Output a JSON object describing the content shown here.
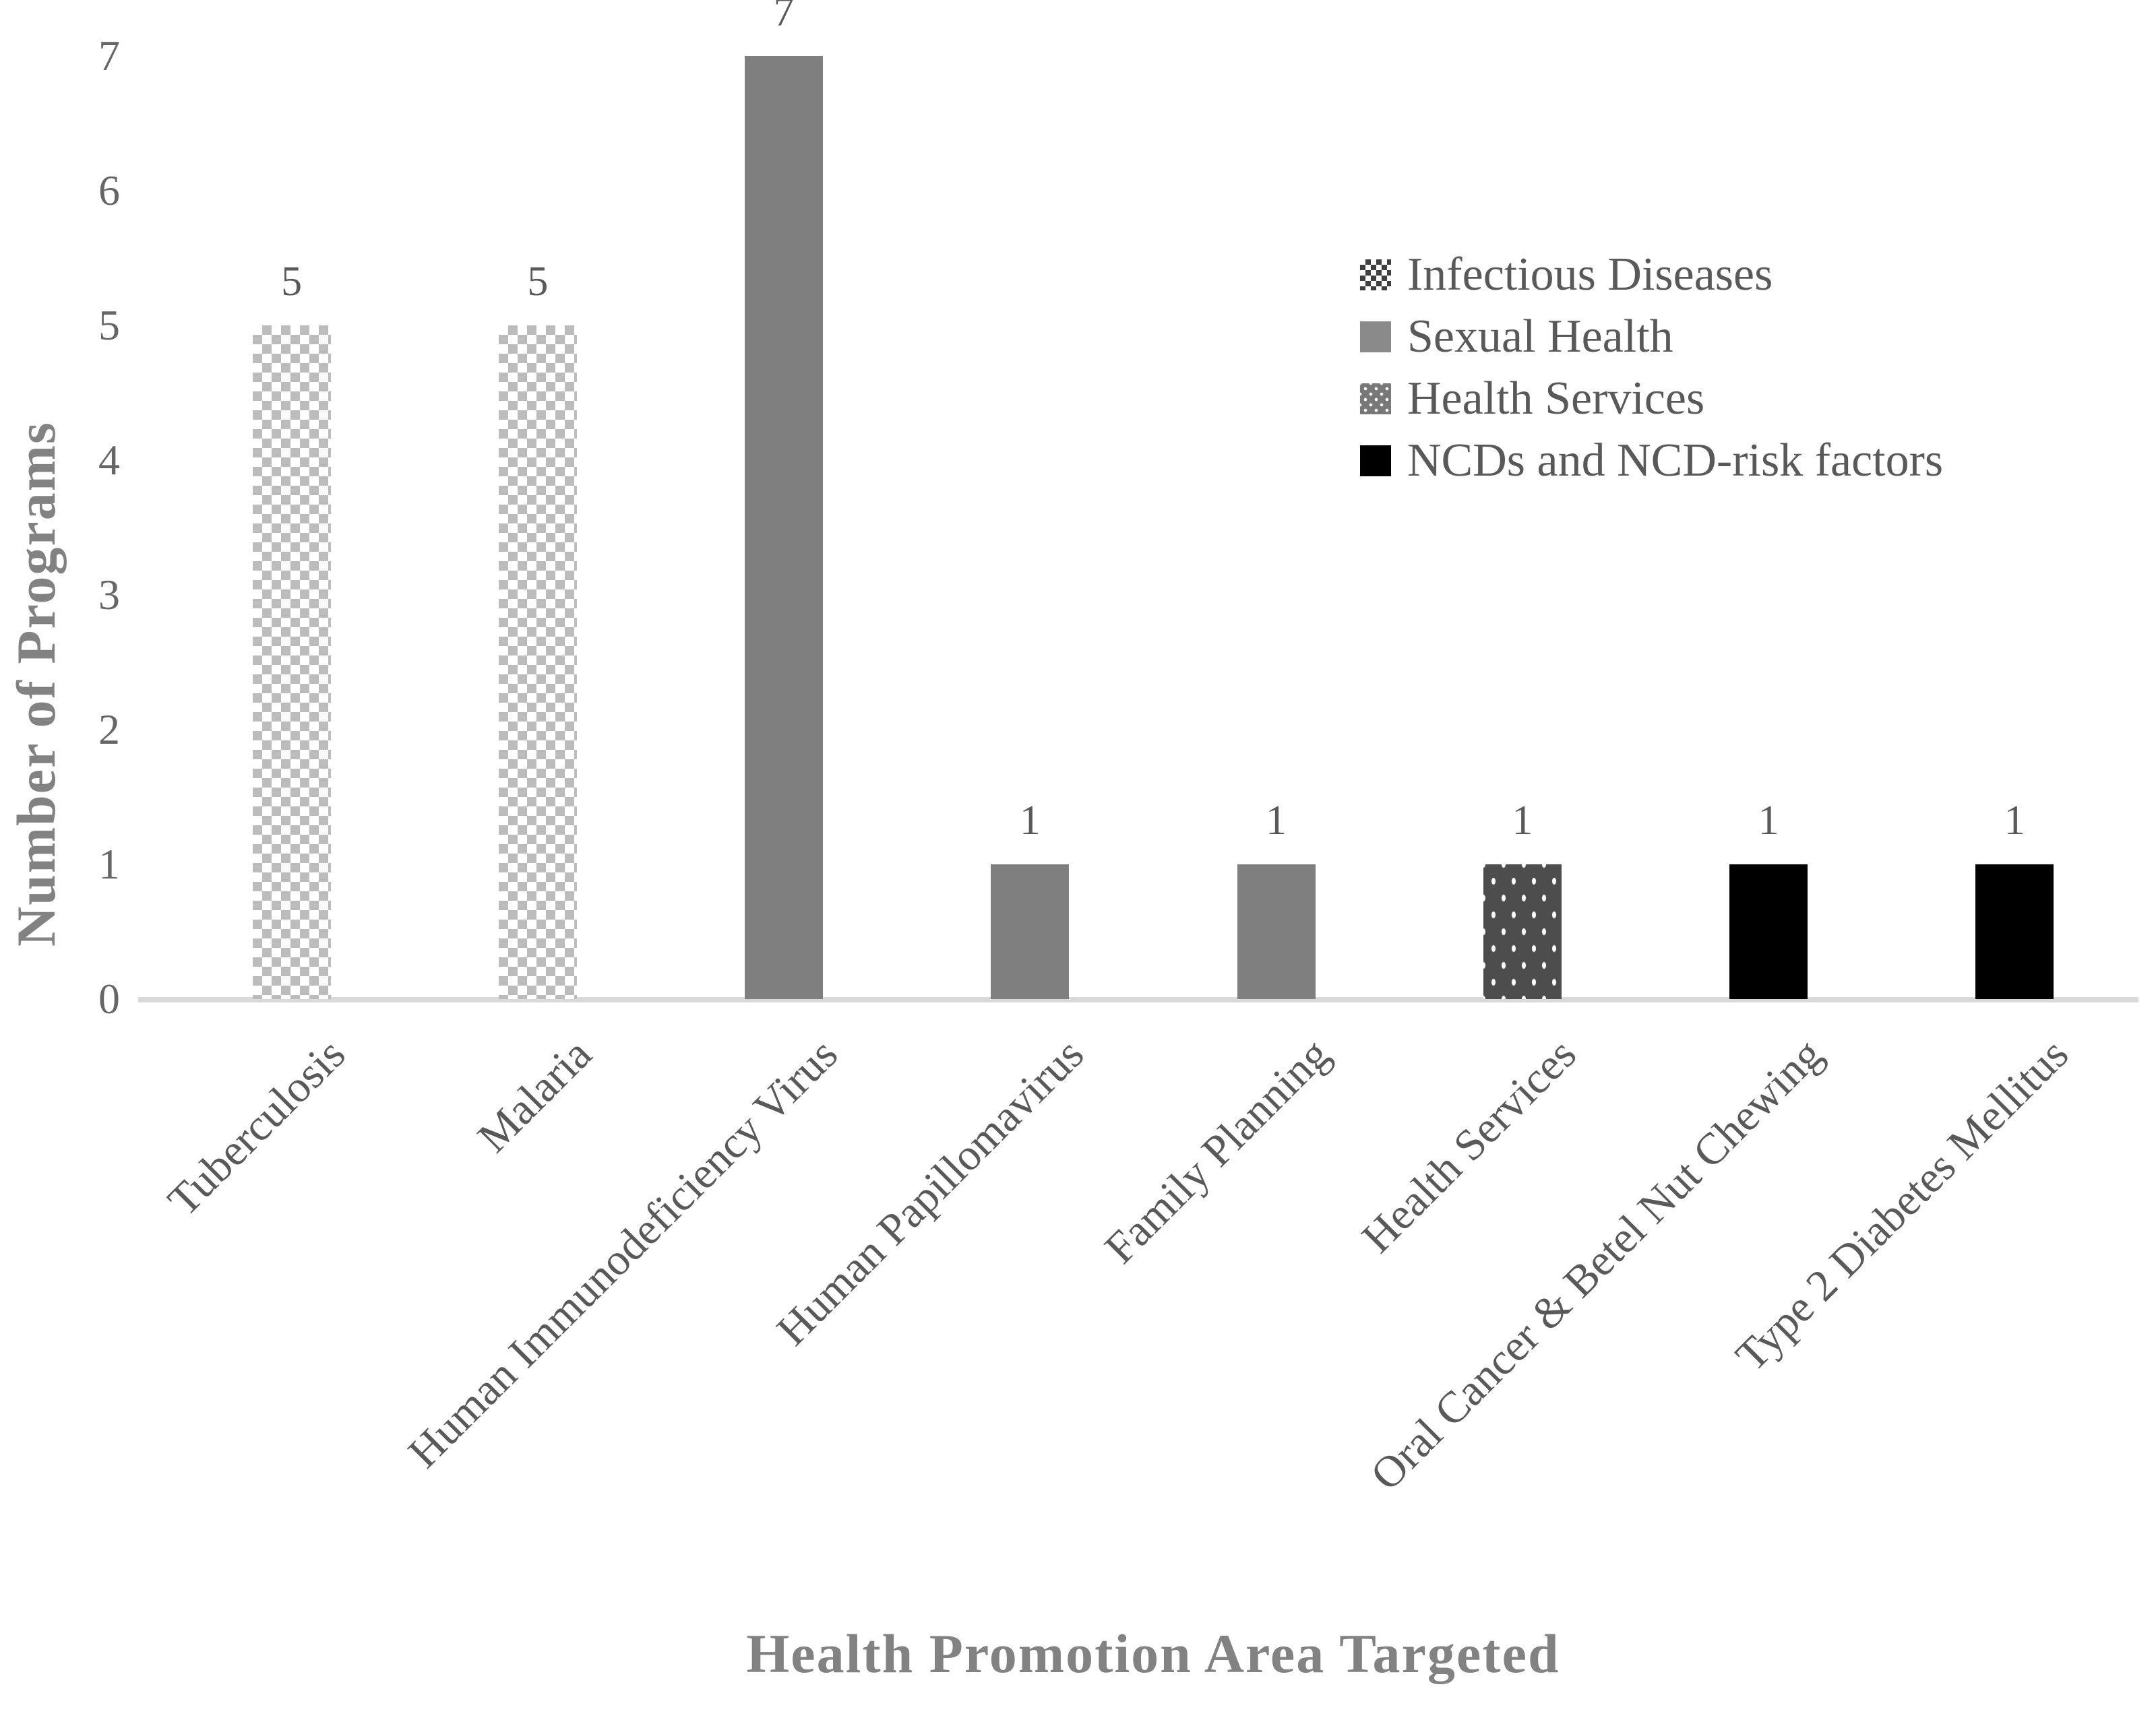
{
  "chart_data": {
    "type": "bar",
    "title": "",
    "xlabel": "Health Promotion Area Targeted",
    "ylabel": "Number of Programs",
    "ylim": [
      0,
      7
    ],
    "yticks": [
      0,
      1,
      2,
      3,
      4,
      5,
      6,
      7
    ],
    "grid": false,
    "legend_position": "upper-right",
    "categories": [
      "Tuberculosis",
      "Malaria",
      "Human Immunodeficiency Virus",
      "Human Papillomavirus",
      "Family Planning",
      "Health Services",
      "Oral Cancer & Betel Nut Chewing",
      "Type 2 Diabetes Mellitus"
    ],
    "values": [
      5,
      5,
      7,
      1,
      1,
      1,
      1,
      1
    ],
    "series_by_bar": [
      "Infectious Diseases",
      "Infectious Diseases",
      "Sexual Health",
      "Sexual Health",
      "Sexual Health",
      "Health Services",
      "NCDs and NCD-risk factors",
      "NCDs and NCD-risk factors"
    ],
    "legend": [
      {
        "label": "Infectious Diseases",
        "pattern": "checker"
      },
      {
        "label": "Sexual Health",
        "pattern": "solid-gray"
      },
      {
        "label": "Health Services",
        "pattern": "dark-dots"
      },
      {
        "label": "NCDs and NCD-risk factors",
        "pattern": "solid-black"
      }
    ],
    "colors": {
      "checker_gray": "#bcbcbc",
      "solid_gray": "#7f7f7f",
      "dots_background": "#4d4d4d",
      "black": "#000000",
      "axis_line": "#d9d9d9",
      "tick_text": "#666666",
      "value_text": "#595959",
      "title_text": "#828282"
    }
  }
}
